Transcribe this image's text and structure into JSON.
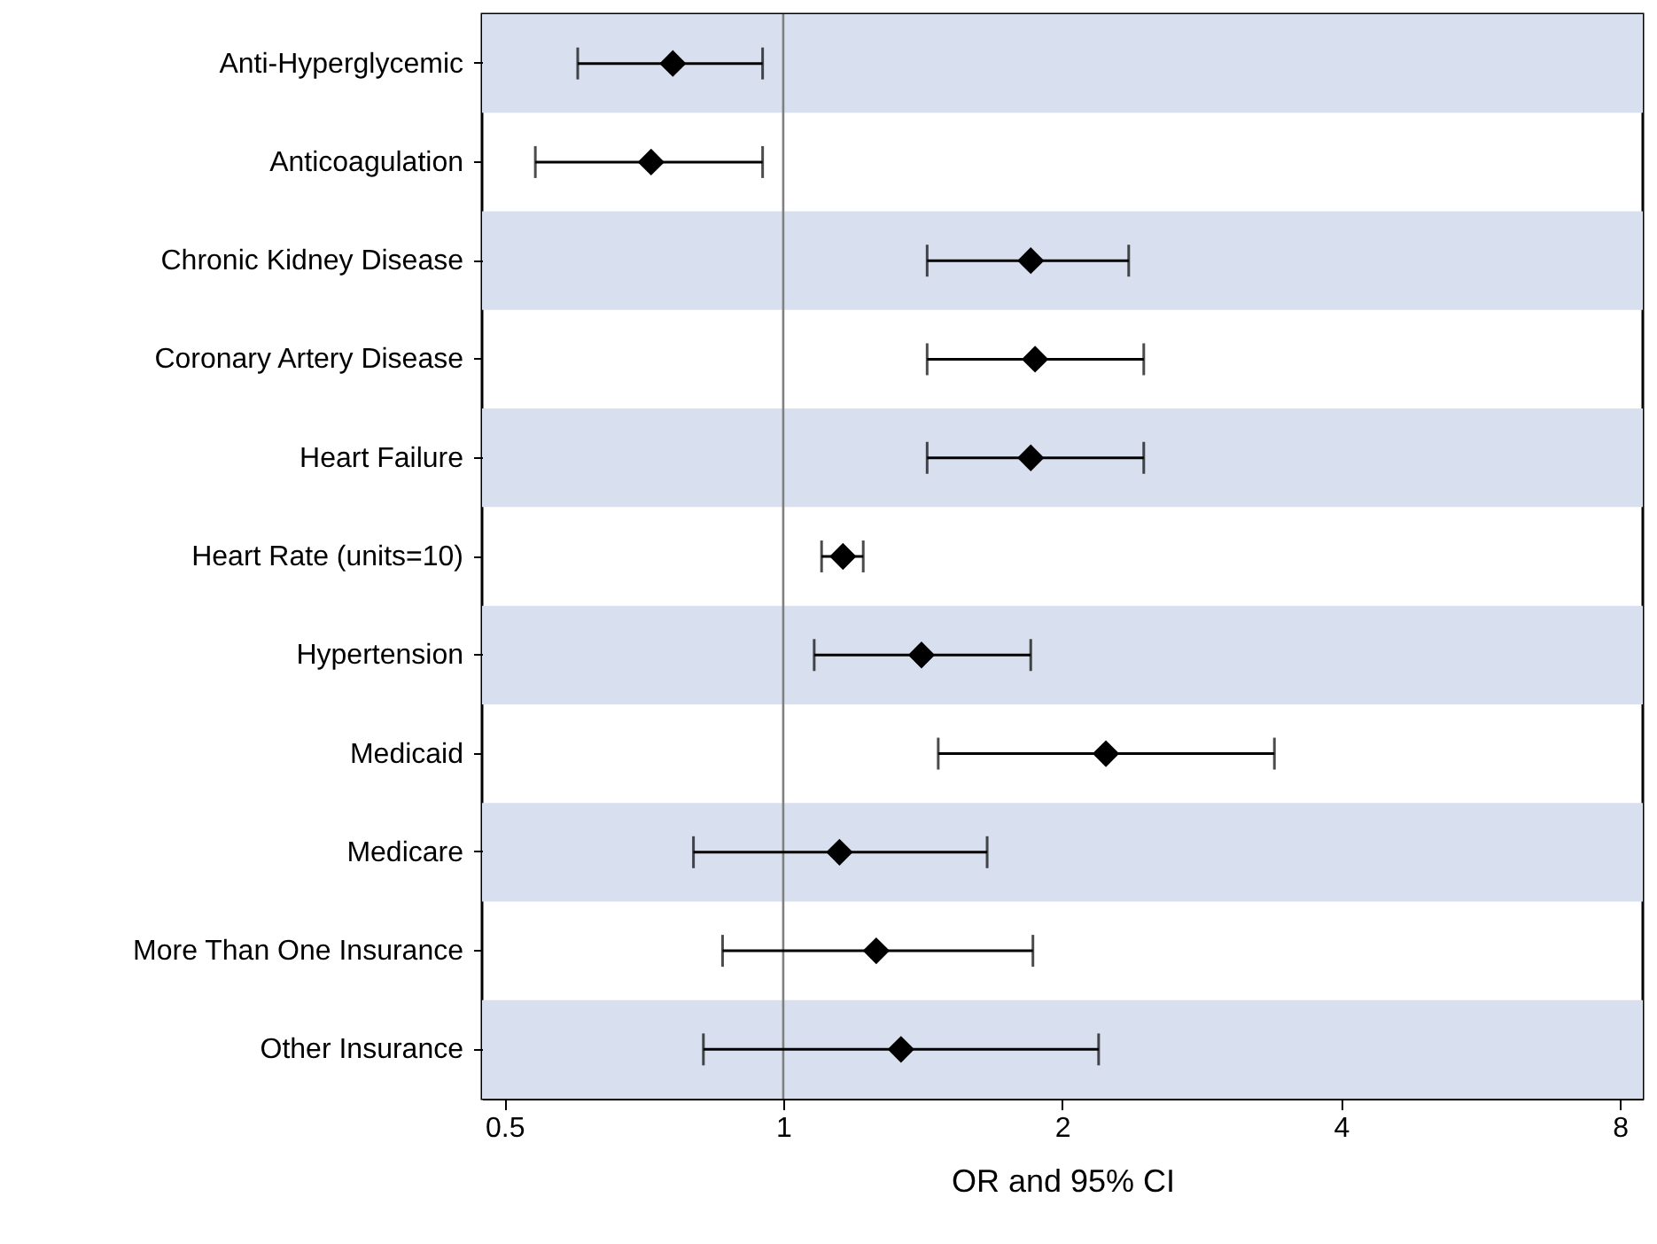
{
  "chart_data": {
    "type": "scatter",
    "orientation": "horizontal",
    "log": "x",
    "xlabel": "OR and 95% CI",
    "categories": [
      "Anti-Hyperglycemic",
      "Anticoagulation",
      "Chronic Kidney Disease",
      "Coronary Artery Disease",
      "Heart Failure",
      "Heart Rate (units=10)",
      "Hypertension",
      "Medicaid",
      "Medicare",
      "More Than One Insurance",
      "Other Insurance"
    ],
    "series": [
      {
        "color": "#000000",
        "values": [
          0.76,
          0.72,
          1.85,
          1.87,
          1.85,
          1.16,
          1.41,
          2.23,
          1.15,
          1.26,
          1.34
        ],
        "errors": [
          [
            0.6,
            0.95
          ],
          [
            0.54,
            0.95
          ],
          [
            1.43,
            2.36
          ],
          [
            1.43,
            2.45
          ],
          [
            1.43,
            2.45
          ],
          [
            1.1,
            1.22
          ],
          [
            1.08,
            1.85
          ],
          [
            1.47,
            3.39
          ],
          [
            0.8,
            1.66
          ],
          [
            0.86,
            1.86
          ],
          [
            0.82,
            2.19
          ]
        ]
      }
    ],
    "marker": "diamond",
    "xlim": [
      0.473,
      8.47
    ],
    "xticks": [
      0.5,
      1,
      2,
      4,
      8
    ],
    "grid": false,
    "ref_lines": [
      {
        "axis": "x",
        "value": 1,
        "color": "#808080"
      }
    ],
    "bands": [
      {
        "axis": "y",
        "from": "Anti-Hyperglycemic",
        "to": "Anti-Hyperglycemic",
        "color": "#d8dfee"
      },
      {
        "axis": "y",
        "from": "Chronic Kidney Disease",
        "to": "Chronic Kidney Disease",
        "color": "#d8dfee"
      },
      {
        "axis": "y",
        "from": "Heart Failure",
        "to": "Heart Failure",
        "color": "#d8dfee"
      },
      {
        "axis": "y",
        "from": "Hypertension",
        "to": "Hypertension",
        "color": "#d8dfee"
      },
      {
        "axis": "y",
        "from": "Medicare",
        "to": "Medicare",
        "color": "#d8dfee"
      },
      {
        "axis": "y",
        "from": "Other Insurance",
        "to": "Other Insurance",
        "color": "#d8dfee"
      }
    ]
  }
}
